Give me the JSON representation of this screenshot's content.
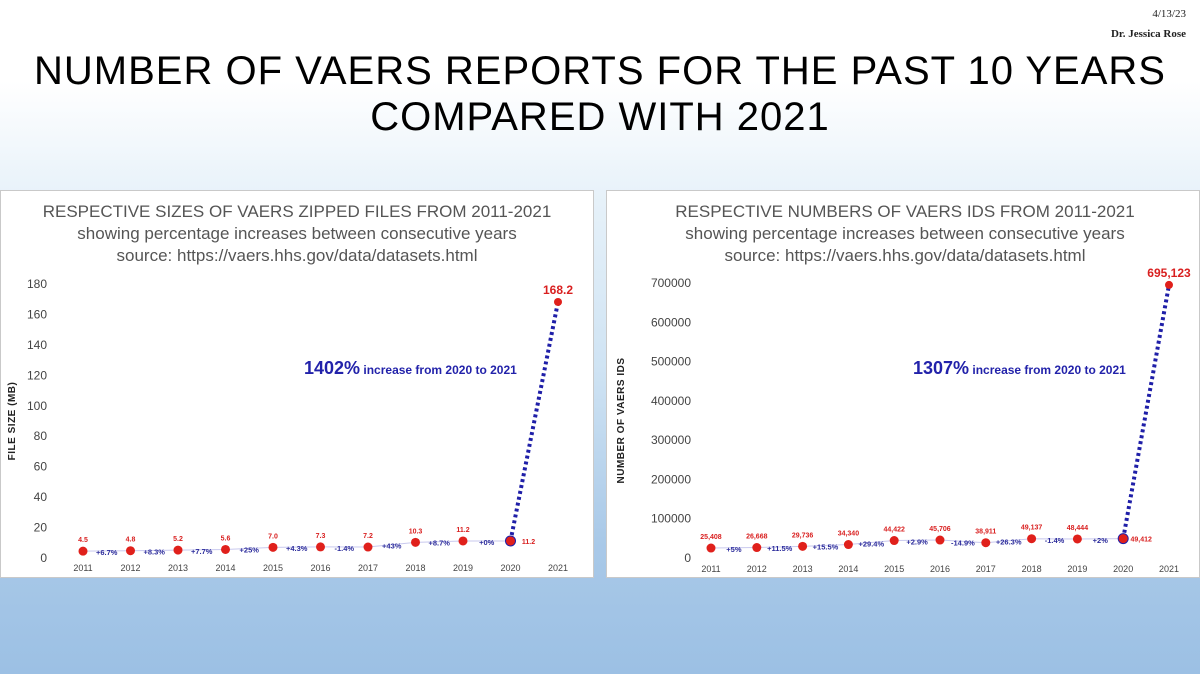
{
  "header": {
    "date": "4/13/23",
    "author": "Dr. Jessica Rose",
    "title_line1": "NUMBER OF VAERS REPORTS FOR THE PAST 10 YEARS",
    "title_line2": "COMPARED WITH 2021"
  },
  "chart_data": [
    {
      "type": "line",
      "title_lines": [
        "RESPECTIVE SIZES OF VAERS ZIPPED FILES FROM 2011-2021",
        "showing percentage increases between consecutive years",
        "source: https://vaers.hhs.gov/data/datasets.html"
      ],
      "xlabel": "",
      "ylabel": "FILE SIZE (MB)",
      "ylim": [
        0,
        180
      ],
      "yticks": [
        0,
        20,
        40,
        60,
        80,
        100,
        120,
        140,
        160,
        180
      ],
      "yticks_labels": [
        "0",
        "20",
        "40",
        "60",
        "80",
        "100",
        "120",
        "140",
        "160",
        "180"
      ],
      "categories": [
        "2011",
        "2012",
        "2013",
        "2014",
        "2015",
        "2016",
        "2017",
        "2018",
        "2019",
        "2020",
        "2021"
      ],
      "values": [
        4.5,
        4.8,
        5.2,
        5.6,
        7.0,
        7.3,
        7.2,
        10.3,
        11.2,
        11.2,
        168.2
      ],
      "value_labels": [
        "4.5",
        "4.8",
        "5.2",
        "5.6",
        "7.0",
        "7.3",
        "7.2",
        "10.3",
        "11.2",
        "11.2",
        "168.2"
      ],
      "pct_labels": [
        "+6.7%",
        "+8.3%",
        "+7.7%",
        "+25%",
        "+4.3%",
        "-1.4%",
        "+43%",
        "+8.7%",
        "+0%"
      ],
      "annotation_big": "1402%",
      "annotation_small": "increase from 2020 to 2021",
      "grid": false,
      "colors": {
        "points": "#e0201b",
        "line": "#1f1fa8",
        "value_labels": "#d92020",
        "pct_labels": "#2b2b9b"
      }
    },
    {
      "type": "line",
      "title_lines": [
        "RESPECTIVE NUMBERS OF VAERS IDS FROM 2011-2021",
        "showing percentage increases between consecutive years",
        "source: https://vaers.hhs.gov/data/datasets.html"
      ],
      "xlabel": "",
      "ylabel": "NUMBER OF VAERS IDS",
      "ylim": [
        0,
        700000
      ],
      "yticks": [
        0,
        100000,
        200000,
        300000,
        400000,
        500000,
        600000,
        700000
      ],
      "yticks_labels": [
        "0",
        "100000",
        "200000",
        "300000",
        "400000",
        "500000",
        "600000",
        "700000"
      ],
      "categories": [
        "2011",
        "2012",
        "2013",
        "2014",
        "2015",
        "2016",
        "2017",
        "2018",
        "2019",
        "2020",
        "2021"
      ],
      "values": [
        25408,
        26668,
        29736,
        34340,
        44422,
        45706,
        38911,
        49137,
        48444,
        49412,
        695123
      ],
      "value_labels": [
        "25,408",
        "26,668",
        "29,736",
        "34,340",
        "44,422",
        "45,706",
        "38,911",
        "49,137",
        "48,444",
        "49,412",
        "695,123"
      ],
      "pct_labels": [
        "+5%",
        "+11.5%",
        "+15.5%",
        "+29.4%",
        "+2.9%",
        "-14.9%",
        "+26.3%",
        "-1.4%",
        "+2%"
      ],
      "annotation_big": "1307%",
      "annotation_small": "increase from 2020 to 2021",
      "grid": false,
      "colors": {
        "points": "#e0201b",
        "line": "#1f1fa8",
        "value_labels": "#d92020",
        "pct_labels": "#2b2b9b"
      }
    }
  ]
}
